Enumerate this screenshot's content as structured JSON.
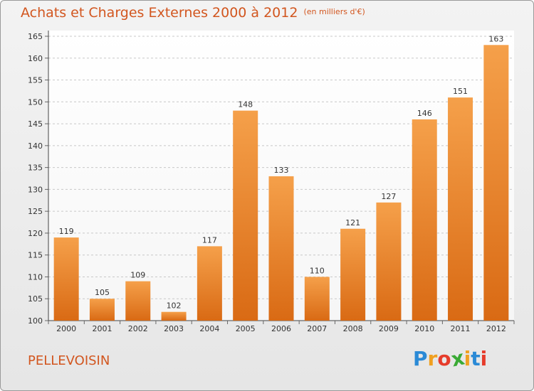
{
  "chart_data": {
    "type": "bar",
    "title": "Achats et Charges Externes 2000 à 2012",
    "subtitle": "(en milliers d'€)",
    "categories": [
      "2000",
      "2001",
      "2002",
      "2003",
      "2004",
      "2005",
      "2006",
      "2007",
      "2008",
      "2009",
      "2010",
      "2011",
      "2012"
    ],
    "values": [
      119,
      105,
      109,
      102,
      117,
      148,
      133,
      110,
      121,
      127,
      146,
      151,
      163
    ],
    "ylim": [
      100,
      165
    ],
    "yticks": [
      100,
      105,
      110,
      115,
      120,
      125,
      130,
      135,
      140,
      145,
      150,
      155,
      160,
      165
    ],
    "grid": true,
    "bar_color": "#f07f22"
  },
  "commune": "PELLEVOISIN",
  "brand": {
    "letters": [
      "P",
      "r",
      "o",
      "x",
      "i",
      "t",
      "i"
    ],
    "colors": [
      "#2b8ad6",
      "#f0a020",
      "#e63c2b",
      "#3aaa35",
      "#f0a020",
      "#2b8ad6",
      "#e63c2b"
    ]
  }
}
